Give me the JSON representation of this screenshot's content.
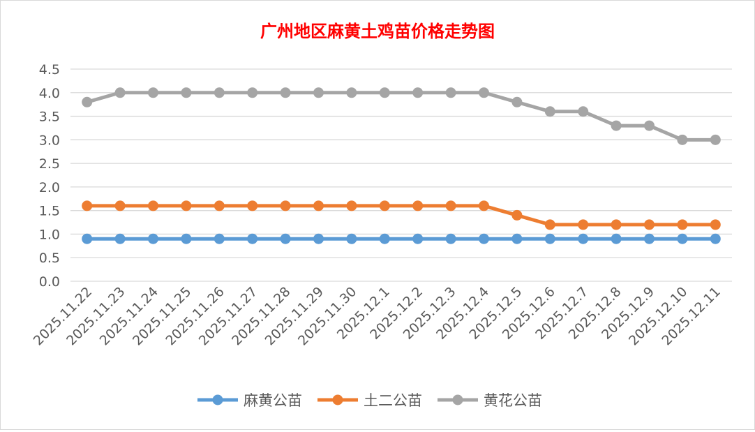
{
  "chart_data": {
    "type": "line",
    "title": "广州地区麻黄土鸡苗价格走势图",
    "title_color": "#ff0000",
    "categories": [
      "2025.11.22",
      "2025.11.23",
      "2025.11.24",
      "2025.11.25",
      "2025.11.26",
      "2025.11.27",
      "2025.11.28",
      "2025.11.29",
      "2025.11.30",
      "2025.12.1",
      "2025.12.2",
      "2025.12.3",
      "2025.12.4",
      "2025.12.5",
      "2025.12.6",
      "2025.12.7",
      "2025.12.8",
      "2025.12.9",
      "2025.12.10",
      "2025.12.11"
    ],
    "series": [
      {
        "name": "麻黄公苗",
        "color": "#5b9bd5",
        "values": [
          0.9,
          0.9,
          0.9,
          0.9,
          0.9,
          0.9,
          0.9,
          0.9,
          0.9,
          0.9,
          0.9,
          0.9,
          0.9,
          0.9,
          0.9,
          0.9,
          0.9,
          0.9,
          0.9,
          0.9
        ]
      },
      {
        "name": "土二公苗",
        "color": "#ed7d31",
        "values": [
          1.6,
          1.6,
          1.6,
          1.6,
          1.6,
          1.6,
          1.6,
          1.6,
          1.6,
          1.6,
          1.6,
          1.6,
          1.6,
          1.4,
          1.2,
          1.2,
          1.2,
          1.2,
          1.2,
          1.2
        ]
      },
      {
        "name": "黄花公苗",
        "color": "#a5a5a5",
        "values": [
          3.8,
          4.0,
          4.0,
          4.0,
          4.0,
          4.0,
          4.0,
          4.0,
          4.0,
          4.0,
          4.0,
          4.0,
          4.0,
          3.8,
          3.6,
          3.6,
          3.3,
          3.3,
          3.0,
          3.0
        ]
      }
    ],
    "yticks": [
      "0.0",
      "0.5",
      "1.0",
      "1.5",
      "2.0",
      "2.5",
      "3.0",
      "3.5",
      "4.0",
      "4.5"
    ],
    "ylim": [
      0,
      4.5
    ],
    "grid": true,
    "legend": "bottom",
    "xlabel": "",
    "ylabel": ""
  }
}
